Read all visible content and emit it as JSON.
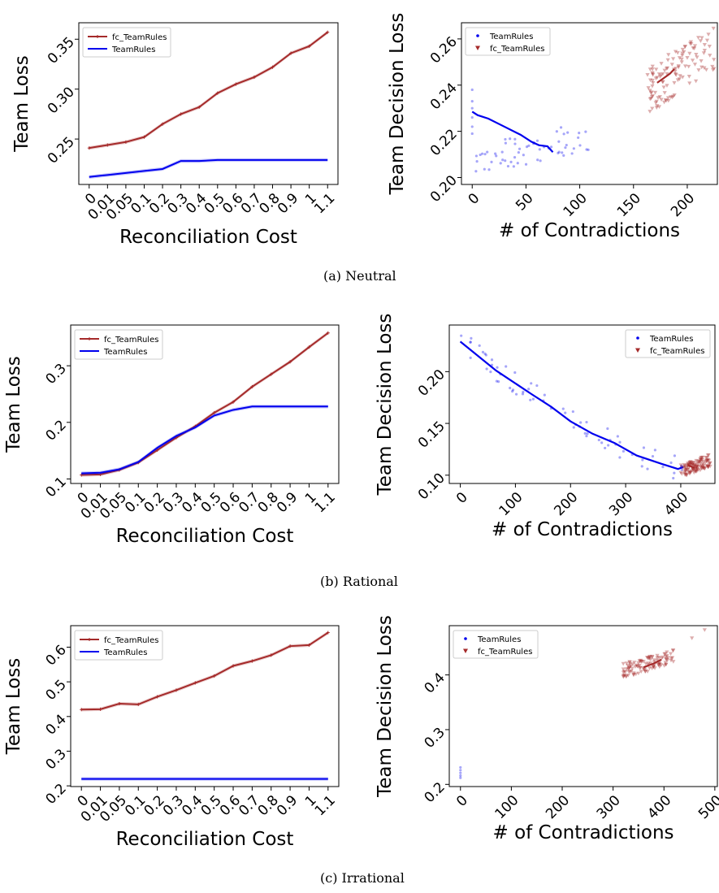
{
  "captions": [
    "(a) Neutral",
    "(b) Rational",
    "(c) Irrational"
  ],
  "colors": {
    "fc": "#a52a2a",
    "team": "#0000ee"
  },
  "chart_data": [
    {
      "type": "line",
      "panel": "a-left",
      "xlabel": "Reconciliation Cost",
      "ylabel": "Team Loss",
      "categories": [
        "0",
        "0.01",
        "0.05",
        "0.1",
        "0.2",
        "0.3",
        "0.4",
        "0.5",
        "0.6",
        "0.7",
        "0.8",
        "0.9",
        "1",
        "1.1"
      ],
      "yticks": [
        0.25,
        0.3,
        0.35
      ],
      "ytick_labels": [
        "0.25",
        "0.30",
        "0.35"
      ],
      "ylim": [
        0.2045,
        0.3665
      ],
      "legend_loc": "upper-left",
      "series": [
        {
          "name": "fc_TeamRules",
          "color": "#a52a2a",
          "marker": "+",
          "values": [
            0.241,
            0.244,
            0.247,
            0.252,
            0.265,
            0.275,
            0.282,
            0.296,
            0.305,
            0.312,
            0.322,
            0.336,
            0.343,
            0.357
          ]
        },
        {
          "name": "TeamRules",
          "color": "#0000ee",
          "values": [
            0.212,
            0.214,
            0.216,
            0.218,
            0.22,
            0.228,
            0.228,
            0.229,
            0.229,
            0.229,
            0.229,
            0.229,
            0.229,
            0.229
          ]
        }
      ]
    },
    {
      "type": "scatter",
      "panel": "a-right",
      "xlabel": "# of Contradictions",
      "ylabel": "Team Decision Loss",
      "xticks": [
        0,
        50,
        100,
        150,
        200
      ],
      "xtick_labels": [
        "0",
        "50",
        "100",
        "150",
        "200"
      ],
      "xlim": [
        -10,
        228
      ],
      "yticks": [
        0.2,
        0.22,
        0.24,
        0.26
      ],
      "ytick_labels": [
        "0.20",
        "0.22",
        "0.24",
        "0.26"
      ],
      "ylim": [
        0.197,
        0.267
      ],
      "legend_loc": "upper-left",
      "legend": [
        "TeamRules",
        "fc_TeamRules"
      ],
      "series": [
        {
          "name": "TeamRules",
          "color": "#0000ee",
          "fit": [
            [
              0,
              0.2285
            ],
            [
              5,
              0.227
            ],
            [
              15,
              0.2255
            ],
            [
              30,
              0.222
            ],
            [
              45,
              0.2185
            ],
            [
              55,
              0.2155
            ],
            [
              62,
              0.214
            ],
            [
              70,
              0.2135
            ],
            [
              75,
              0.211
            ]
          ],
          "cloud": {
            "seed": 11,
            "n": 60,
            "x": [
              0,
              110
            ],
            "y": [
              0.2,
              0.225
            ],
            "extra": [
              [
                0,
                0.238
              ],
              [
                0,
                0.233
              ],
              [
                0,
                0.23
              ],
              [
                0,
                0.226
              ],
              [
                0,
                0.222
              ],
              [
                0,
                0.219
              ]
            ]
          }
        },
        {
          "name": "fc_TeamRules",
          "color": "#a52a2a",
          "fit": [
            [
              172,
              0.241
            ],
            [
              178,
              0.243
            ],
            [
              184,
              0.245
            ],
            [
              188,
              0.247
            ]
          ],
          "cloud": {
            "seed": 23,
            "n": 120,
            "x": [
              163,
              225
            ],
            "y": [
              0.228,
              0.265
            ]
          }
        }
      ]
    },
    {
      "type": "line",
      "panel": "b-left",
      "xlabel": "Reconciliation Cost",
      "ylabel": "Team Loss",
      "categories": [
        "0",
        "0.01",
        "0.05",
        "0.1",
        "0.2",
        "0.3",
        "0.4",
        "0.5",
        "0.6",
        "0.7",
        "0.8",
        "0.9",
        "1",
        "1.1"
      ],
      "yticks": [
        0.1,
        0.2,
        0.3
      ],
      "ytick_labels": [
        "0.1",
        "0.2",
        "0.3"
      ],
      "ylim": [
        0.092,
        0.372
      ],
      "legend_loc": "upper-left",
      "series": [
        {
          "name": "fc_TeamRules",
          "color": "#a52a2a",
          "marker": "+",
          "values": [
            0.107,
            0.108,
            0.116,
            0.129,
            0.151,
            0.173,
            0.193,
            0.217,
            0.236,
            0.263,
            0.285,
            0.307,
            0.333,
            0.358
          ]
        },
        {
          "name": "TeamRules",
          "color": "#0000ee",
          "values": [
            0.11,
            0.111,
            0.117,
            0.13,
            0.155,
            0.176,
            0.191,
            0.212,
            0.222,
            0.228,
            0.228,
            0.228,
            0.228,
            0.228
          ]
        }
      ]
    },
    {
      "type": "scatter",
      "panel": "b-right",
      "xlabel": "# of Contradictions",
      "ylabel": "Team Decision Loss",
      "xticks": [
        0,
        100,
        200,
        300,
        400
      ],
      "xtick_labels": [
        "0",
        "100",
        "200",
        "300",
        "400"
      ],
      "xlim": [
        -20,
        462
      ],
      "yticks": [
        0.1,
        0.15,
        0.2
      ],
      "ytick_labels": [
        "0.10",
        "0.15",
        "0.20"
      ],
      "ylim": [
        0.092,
        0.245
      ],
      "legend_loc": "upper-right",
      "legend": [
        "TeamRules",
        "fc_TeamRules"
      ],
      "series": [
        {
          "name": "TeamRules",
          "color": "#0000ee",
          "fit": [
            [
              0,
              0.229
            ],
            [
              65,
              0.201
            ],
            [
              130,
              0.178
            ],
            [
              165,
              0.166
            ],
            [
              200,
              0.152
            ],
            [
              240,
              0.14
            ],
            [
              280,
              0.131
            ],
            [
              320,
              0.119
            ],
            [
              365,
              0.111
            ],
            [
              395,
              0.106
            ],
            [
              405,
              0.108
            ]
          ],
          "cloud": {
            "seed": 31,
            "n": 70,
            "x": [
              0,
              410
            ],
            "y": [
              0.1,
              0.232
            ],
            "band": 0.012
          }
        },
        {
          "name": "fc_TeamRules",
          "color": "#a52a2a",
          "fit": [
            [
              412,
              0.11
            ],
            [
              425,
              0.107
            ]
          ],
          "cloud": {
            "seed": 47,
            "n": 120,
            "x": [
              400,
              455
            ],
            "y": [
              0.098,
              0.12
            ]
          }
        }
      ]
    },
    {
      "type": "line",
      "panel": "c-left",
      "xlabel": "Reconciliation Cost",
      "ylabel": "Team Loss",
      "categories": [
        "0",
        "0.01",
        "0.05",
        "0.1",
        "0.2",
        "0.3",
        "0.4",
        "0.5",
        "0.6",
        "0.7",
        "0.8",
        "0.9",
        "1",
        "1.1"
      ],
      "yticks": [
        0.2,
        0.3,
        0.4,
        0.5,
        0.6
      ],
      "ytick_labels": [
        "0.2",
        "0.3",
        "0.4",
        "0.5",
        "0.6"
      ],
      "ylim": [
        0.198,
        0.662
      ],
      "legend_loc": "upper-left",
      "series": [
        {
          "name": "fc_TeamRules",
          "color": "#a52a2a",
          "marker": "+",
          "values": [
            0.42,
            0.421,
            0.437,
            0.435,
            0.457,
            0.476,
            0.497,
            0.517,
            0.546,
            0.56,
            0.577,
            0.603,
            0.606,
            0.642
          ]
        },
        {
          "name": "TeamRules",
          "color": "#0000ee",
          "values": [
            0.22,
            0.22,
            0.22,
            0.22,
            0.22,
            0.22,
            0.22,
            0.22,
            0.22,
            0.22,
            0.22,
            0.22,
            0.22,
            0.22
          ]
        }
      ]
    },
    {
      "type": "scatter",
      "panel": "c-right",
      "xlabel": "# of Contradictions",
      "ylabel": "Team Decision Loss",
      "xticks": [
        0,
        100,
        200,
        300,
        400,
        500
      ],
      "xtick_labels": [
        "0",
        "100",
        "200",
        "300",
        "400",
        "500"
      ],
      "xlim": [
        -22,
        505
      ],
      "yticks": [
        0.2,
        0.3,
        0.4
      ],
      "ytick_labels": [
        "0.2",
        "0.3",
        "0.4"
      ],
      "ylim": [
        0.196,
        0.49
      ],
      "legend_loc": "upper-left",
      "legend": [
        "TeamRules",
        "fc_TeamRules"
      ],
      "series": [
        {
          "name": "TeamRules",
          "color": "#0000ee",
          "fit": [],
          "cloud": {
            "seed": 5,
            "n": 0,
            "x": [
              0,
              0
            ],
            "y": [
              0.21,
              0.23
            ],
            "extra": [
              [
                0,
                0.231
              ],
              [
                0,
                0.226
              ],
              [
                0,
                0.221
              ],
              [
                0,
                0.216
              ],
              [
                0,
                0.212
              ]
            ]
          }
        },
        {
          "name": "fc_TeamRules",
          "color": "#a52a2a",
          "fit": [
            [
              360,
              0.414
            ],
            [
              380,
              0.421
            ],
            [
              395,
              0.428
            ]
          ],
          "cloud": {
            "seed": 59,
            "n": 110,
            "x": [
              320,
              420
            ],
            "y": [
              0.395,
              0.445
            ],
            "extra": [
              [
                455,
                0.467
              ],
              [
                480,
                0.482
              ]
            ]
          }
        }
      ]
    }
  ]
}
